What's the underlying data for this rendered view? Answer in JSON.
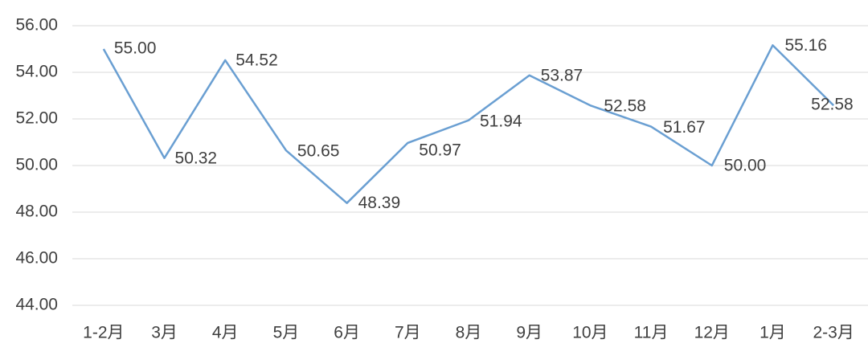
{
  "chart_data": {
    "type": "line",
    "categories": [
      "1-2月",
      "3月",
      "4月",
      "5月",
      "6月",
      "7月",
      "8月",
      "9月",
      "10月",
      "11月",
      "12月",
      "1月",
      "2-3月"
    ],
    "series": [
      {
        "color": "#6a9fd2",
        "values": [
          55,
          50.32,
          54.52,
          50.65,
          48.39,
          50.97,
          51.94,
          53.87,
          52.58,
          51.67,
          50,
          55.16,
          52.58
        ],
        "value_labels": [
          "55.00",
          "50.32",
          "54.52",
          "50.65",
          "48.39",
          "50.97",
          "51.94",
          "53.87",
          "52.58",
          "51.67",
          "50.00",
          "55.16",
          "52.58"
        ]
      }
    ],
    "ylim": [
      44,
      56
    ],
    "yticks": [
      {
        "value": 44,
        "label": "44.00"
      },
      {
        "value": 46,
        "label": "46.00"
      },
      {
        "value": 48,
        "label": "48.00"
      },
      {
        "value": 50,
        "label": "50.00"
      },
      {
        "value": 52,
        "label": "52.00"
      },
      {
        "value": 54,
        "label": "54.00"
      },
      {
        "value": 56,
        "label": "56.00"
      }
    ],
    "grid": true
  }
}
